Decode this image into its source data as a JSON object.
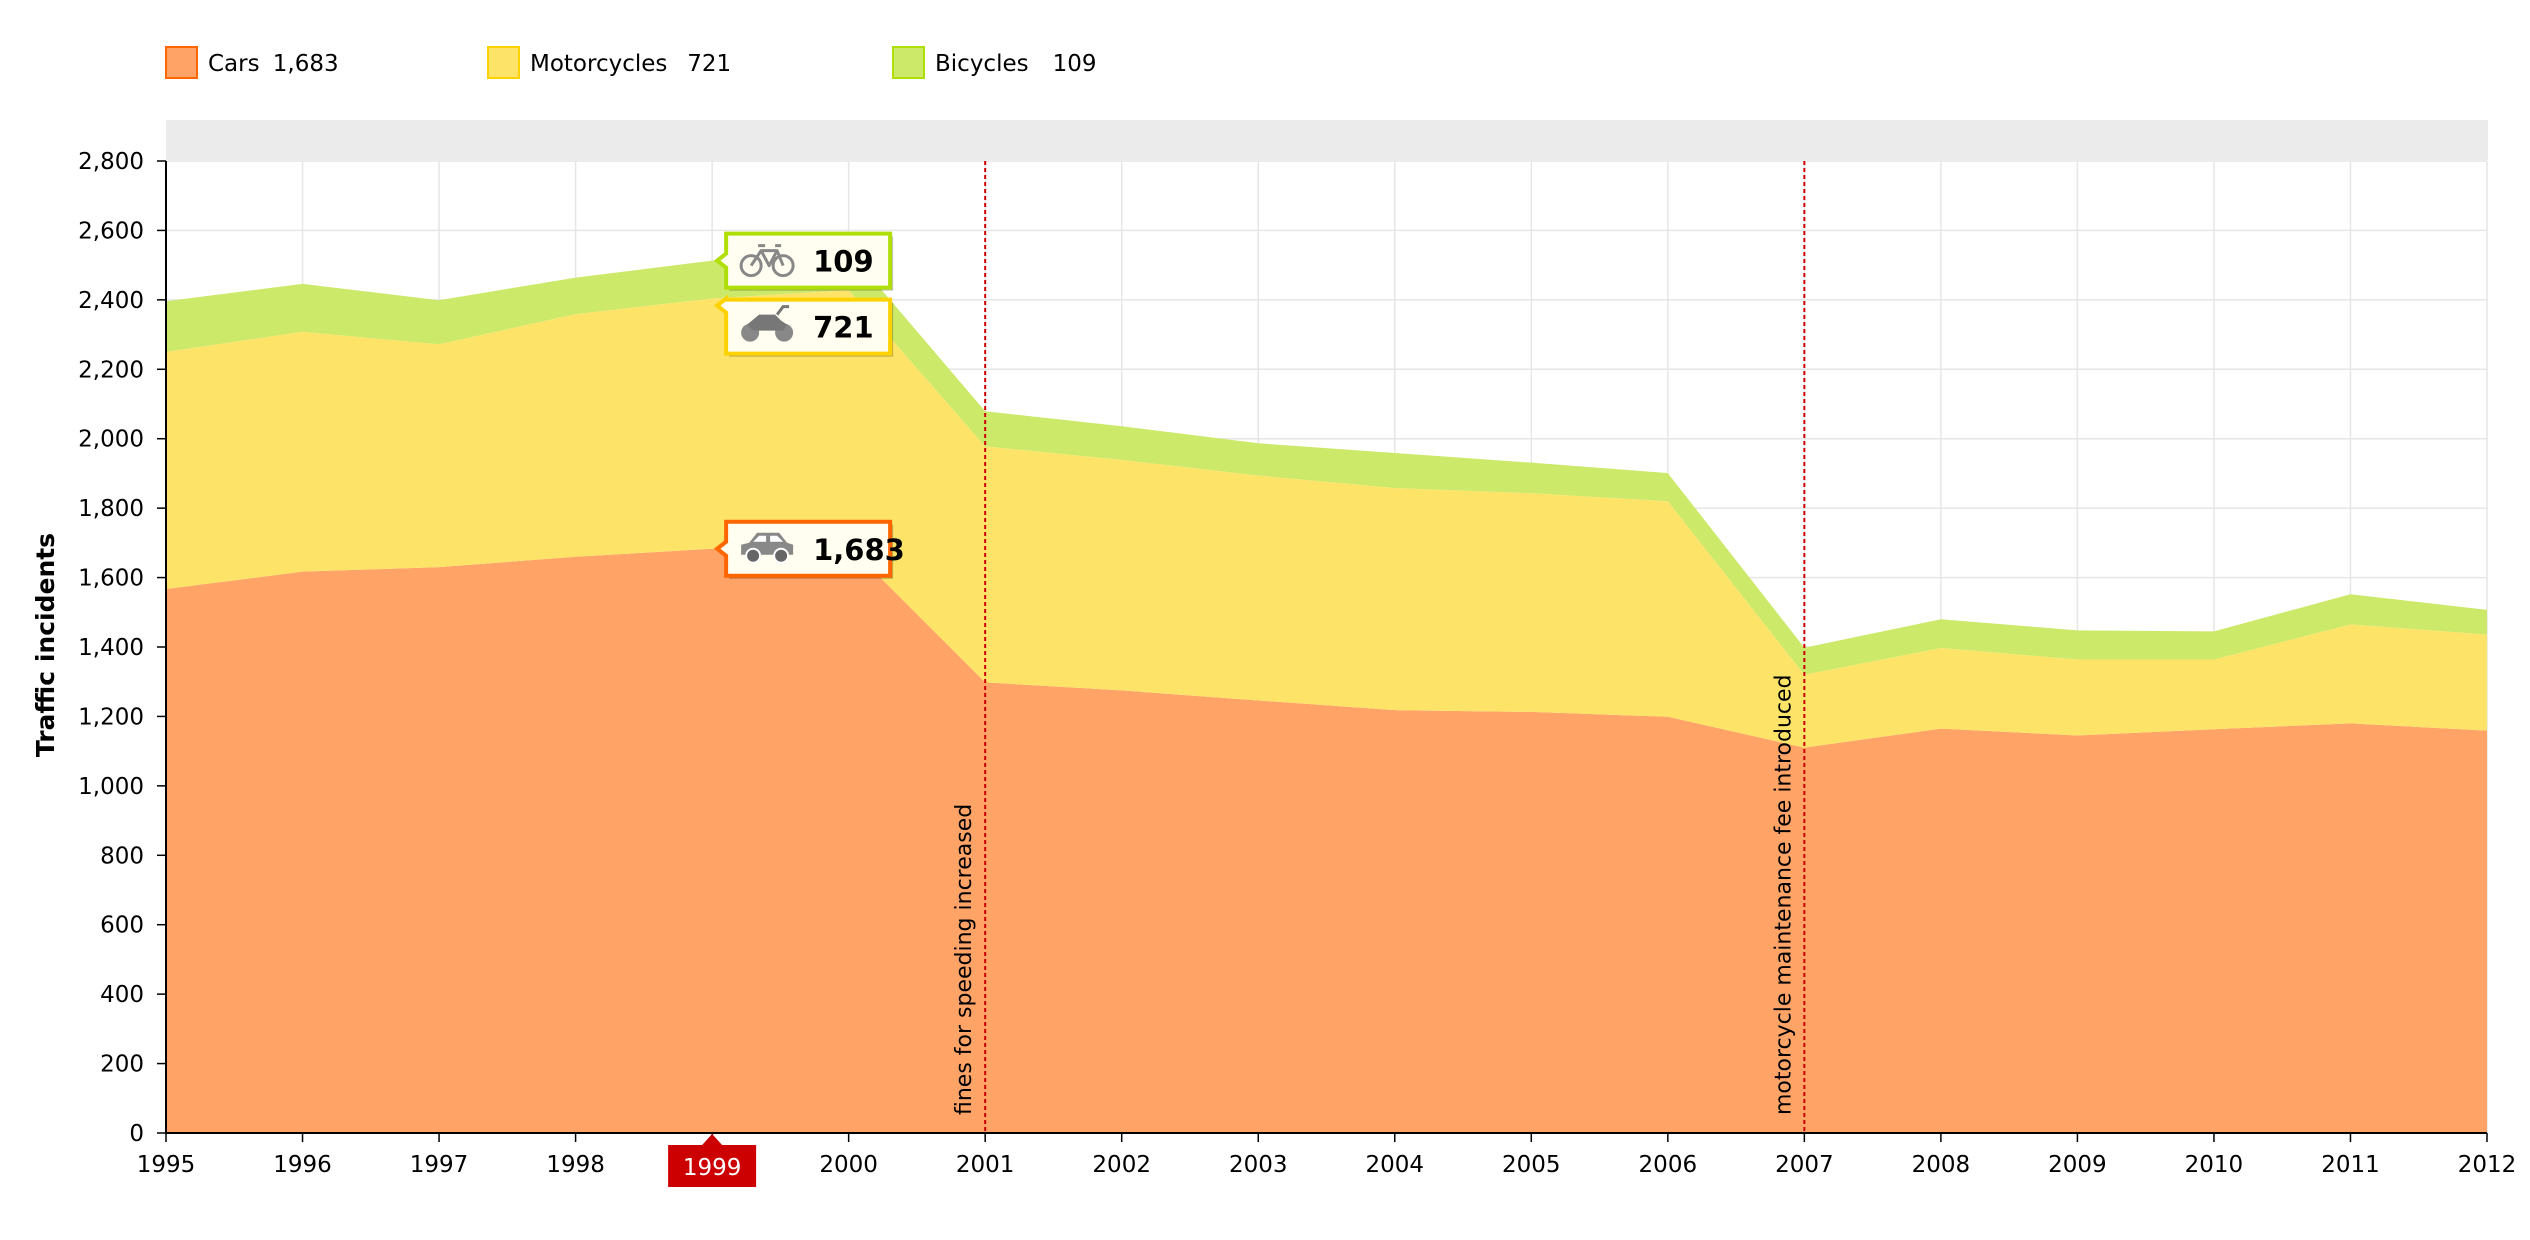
{
  "colors": {
    "cars": "#FFA366",
    "cars_line": "#FF6600",
    "motorcycles": "#FDE468",
    "motorcycles_line": "#FCD202",
    "bicycles": "#CCE96A",
    "bicycles_line": "#B0DE09",
    "grid": "#E6E6E6",
    "guide": "#CC0000",
    "cursor": "#CC0000",
    "scrollbar": "#EBEBEB"
  },
  "legend": [
    {
      "name": "Cars",
      "value": "1,683"
    },
    {
      "name": "Motorcycles",
      "value": "721"
    },
    {
      "name": "Bicycles",
      "value": "109"
    }
  ],
  "chart_data": {
    "type": "area",
    "stacked": true,
    "x": [
      1995,
      1996,
      1997,
      1998,
      1999,
      2000,
      2001,
      2002,
      2003,
      2004,
      2005,
      2006,
      2007,
      2008,
      2009,
      2010,
      2011,
      2012
    ],
    "series": [
      {
        "name": "Cars",
        "values": [
          1567,
          1617,
          1630,
          1660,
          1683,
          1691,
          1298,
          1275,
          1246,
          1218,
          1213,
          1199,
          1110,
          1165,
          1145,
          1163,
          1180,
          1159
        ]
      },
      {
        "name": "Motorcycles",
        "values": [
          683,
          691,
          642,
          699,
          721,
          737,
          680,
          664,
          648,
          640,
          630,
          621,
          210,
          232,
          219,
          201,
          285,
          277
        ]
      },
      {
        "name": "Bicycles",
        "values": [
          146,
          138,
          127,
          105,
          109,
          112,
          101,
          97,
          93,
          101,
          88,
          81,
          78,
          83,
          84,
          81,
          87,
          71
        ]
      }
    ],
    "ylabel": "Traffic incidents",
    "xlabel": "",
    "ylim": [
      0,
      2800
    ],
    "yticks": [
      "0",
      "200",
      "400",
      "600",
      "800",
      "1,000",
      "1,200",
      "1,400",
      "1,600",
      "1,800",
      "2,000",
      "2,200",
      "2,400",
      "2,600",
      "2,800"
    ],
    "grid": true,
    "legend_position": "top-left",
    "guides": [
      {
        "x": 2001,
        "label": "fines for speeding increased"
      },
      {
        "x": 2007,
        "label": "motorcycle maintenance fee introduced"
      }
    ],
    "cursor": {
      "x": 1999,
      "label": "1999"
    },
    "balloons": [
      {
        "series": "Bicycles",
        "icon": "bicycle-icon",
        "value": "109"
      },
      {
        "series": "Motorcycles",
        "icon": "motorcycle-icon",
        "value": "721"
      },
      {
        "series": "Cars",
        "icon": "car-icon",
        "value": "1,683"
      }
    ]
  }
}
